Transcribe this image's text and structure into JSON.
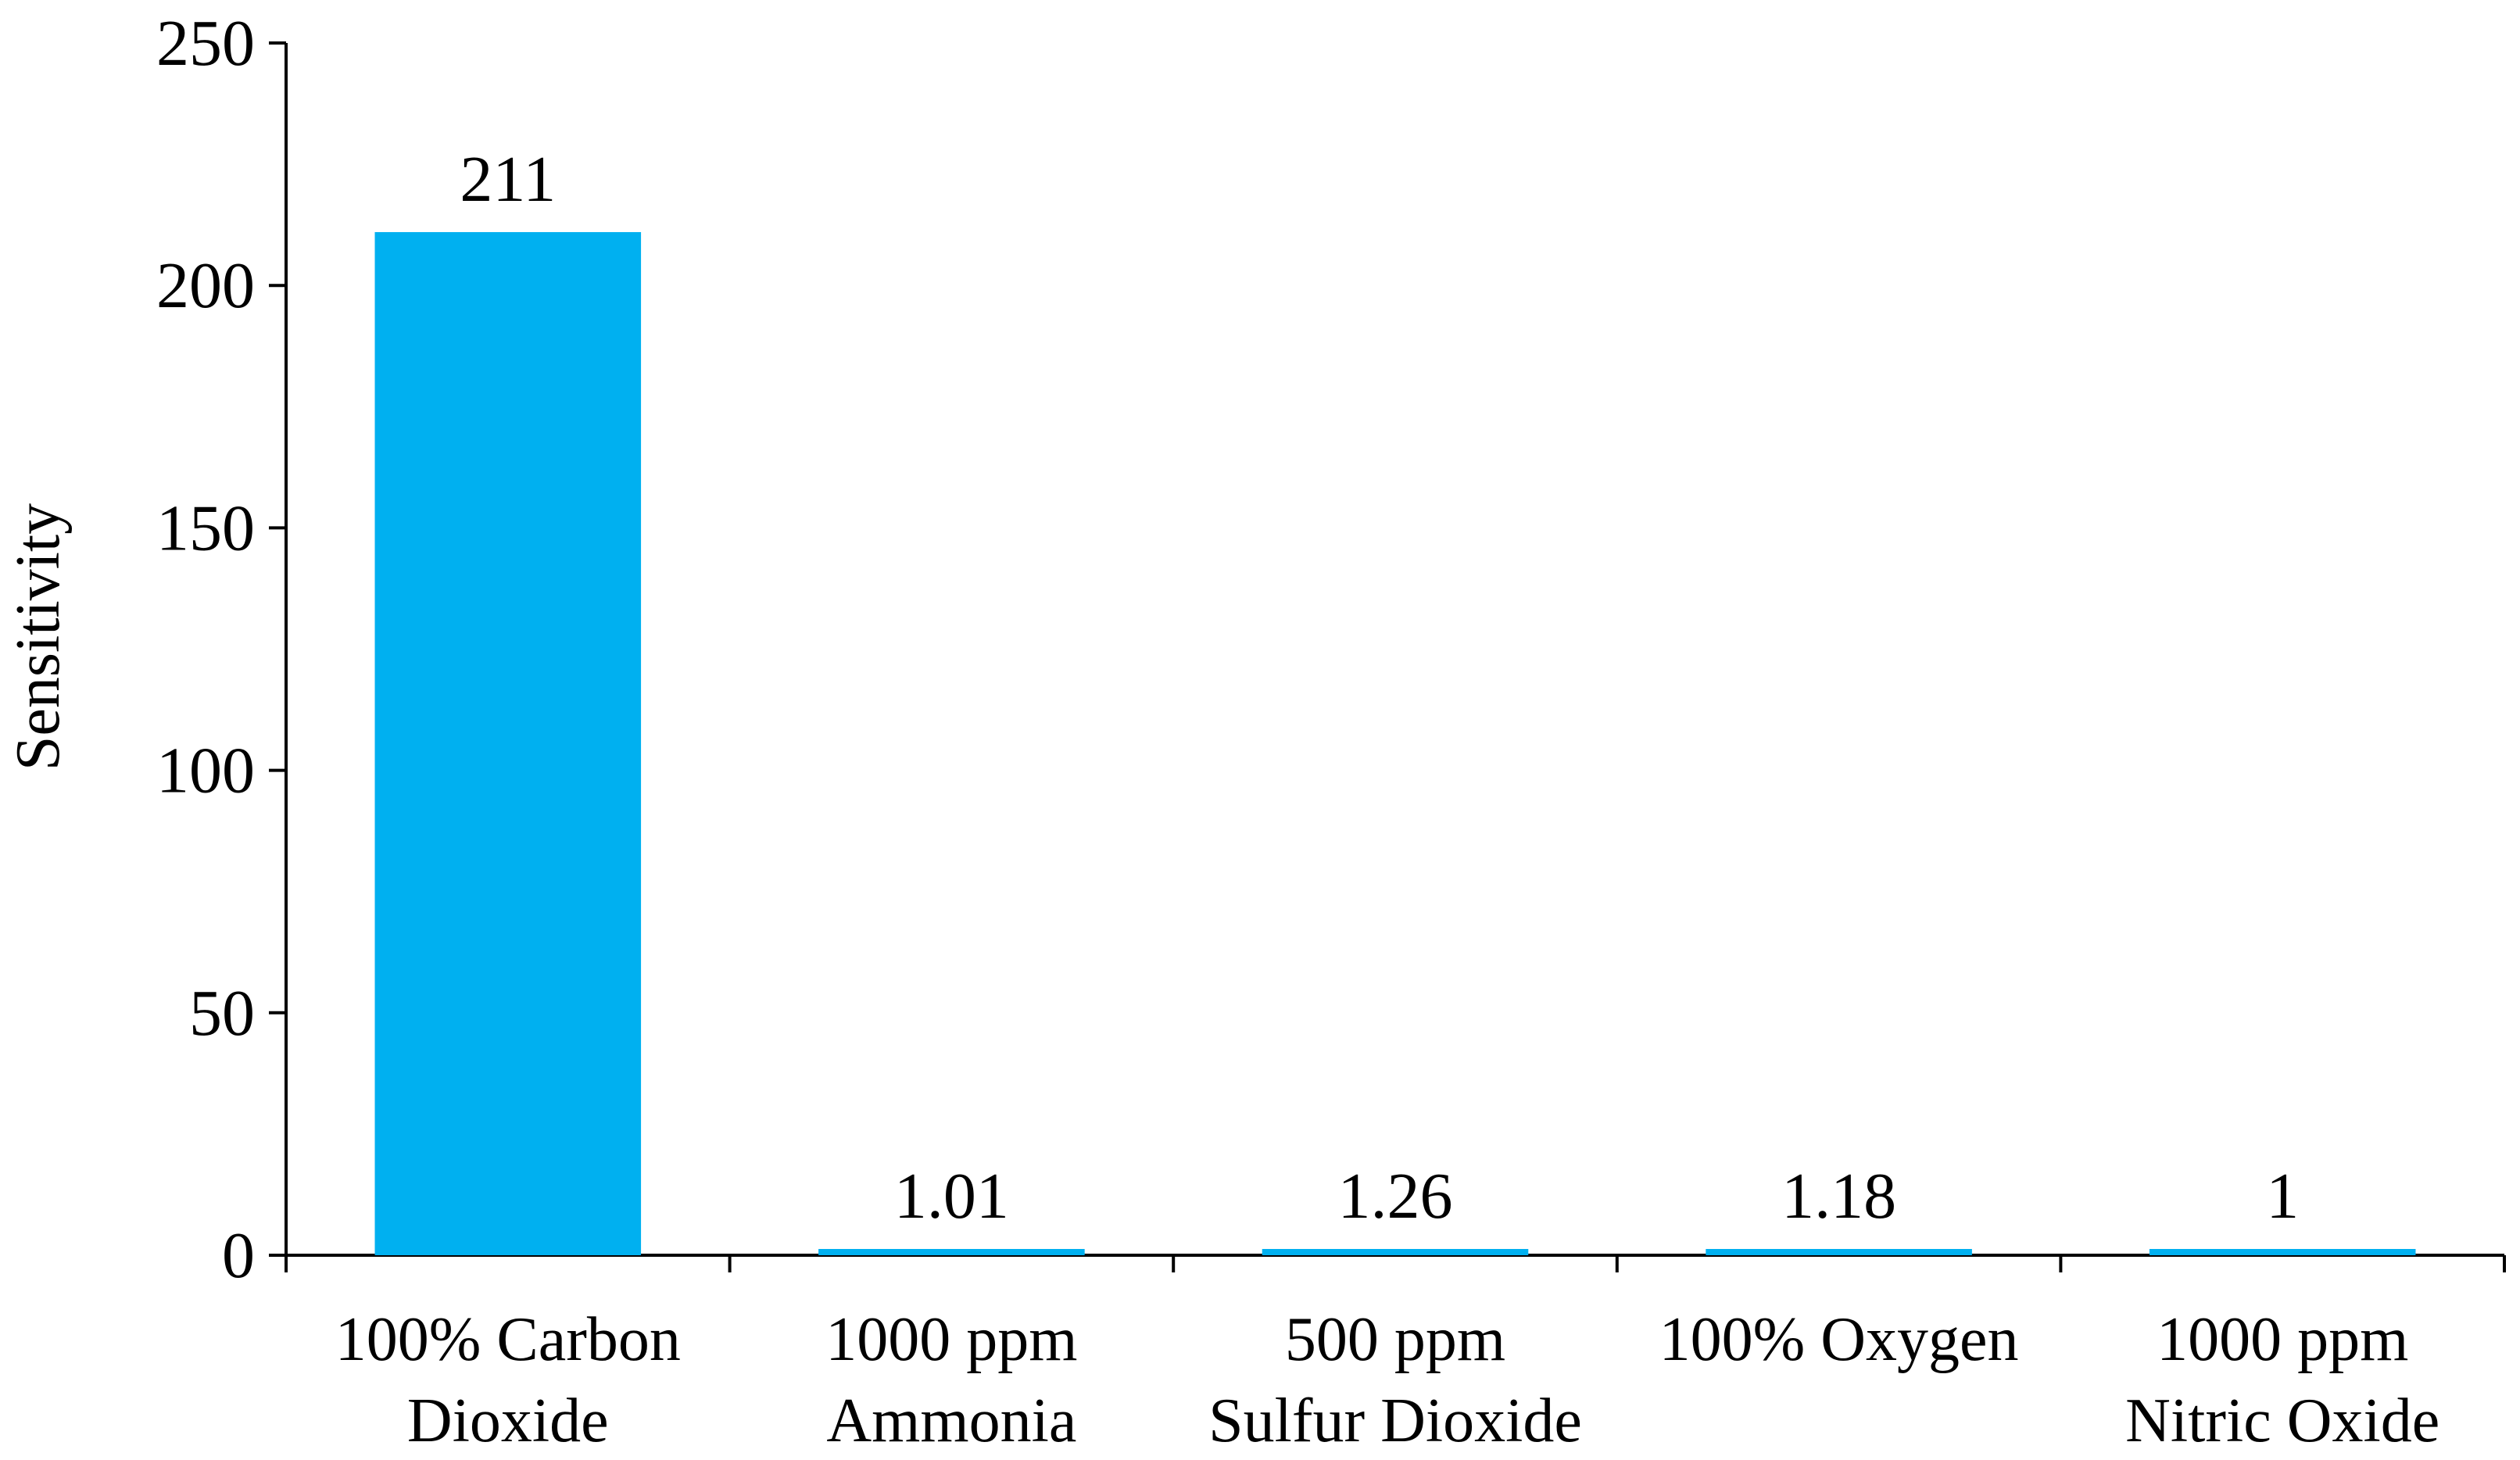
{
  "chart_data": {
    "type": "bar",
    "title": "",
    "xlabel": "",
    "ylabel": "Sensitivity",
    "ylim": [
      0,
      250
    ],
    "yticks": [
      0,
      50,
      100,
      150,
      200,
      250
    ],
    "categories": [
      [
        "100% Carbon",
        "Dioxide"
      ],
      [
        "1000 ppm",
        "Ammonia"
      ],
      [
        "500 ppm",
        "Sulfur Dioxide"
      ],
      [
        "100% Oxygen"
      ],
      [
        "1000 ppm",
        "Nitric Oxide"
      ]
    ],
    "values": [
      211,
      1.01,
      1.26,
      1.18,
      1
    ],
    "data_labels": [
      "211",
      "1.01",
      "1.26",
      "1.18",
      "1"
    ],
    "bar_color": "#00B0F0",
    "axis_color": "#000000",
    "grid": false,
    "legend": "none"
  }
}
